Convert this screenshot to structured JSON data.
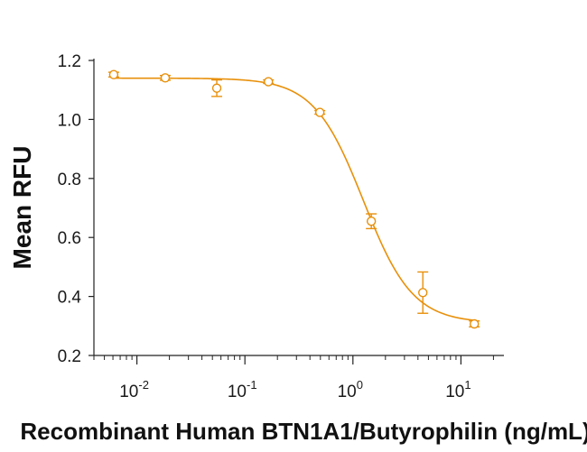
{
  "chart_data": {
    "type": "scatter",
    "title": "",
    "xlabel": "Recombinant Human BTN1A1/Butyrophilin (ng/mL)",
    "ylabel": "Mean RFU",
    "xscale": "log",
    "xlim": [
      0.004,
      25
    ],
    "ylim": [
      0.2,
      1.2
    ],
    "x_ticks": [
      {
        "value": 0.01,
        "base": "10",
        "exp": "-2"
      },
      {
        "value": 0.1,
        "base": "10",
        "exp": "-1"
      },
      {
        "value": 1,
        "base": "10",
        "exp": "0"
      },
      {
        "value": 10,
        "base": "10",
        "exp": "1"
      }
    ],
    "y_ticks": [
      "0.2",
      "0.4",
      "0.6",
      "0.8",
      "1.0",
      "1.2"
    ],
    "grid": false,
    "legend": "none",
    "color": "#e8900a",
    "series": [
      {
        "points": [
          {
            "x": 0.0061,
            "y": 1.152,
            "err": 0.008
          },
          {
            "x": 0.0183,
            "y": 1.141,
            "err": 0.008
          },
          {
            "x": 0.0549,
            "y": 1.106,
            "err": 0.028
          },
          {
            "x": 0.165,
            "y": 1.128,
            "err": 0.006
          },
          {
            "x": 0.494,
            "y": 1.024,
            "err": 0.006
          },
          {
            "x": 1.48,
            "y": 0.655,
            "err": 0.025
          },
          {
            "x": 4.44,
            "y": 0.413,
            "err": 0.07
          },
          {
            "x": 13.3,
            "y": 0.307,
            "err": 0.01
          }
        ],
        "fit": {
          "model": "4PL",
          "top": 1.14,
          "bottom": 0.31,
          "ec50": 1.25,
          "hill": 1.9
        }
      }
    ]
  }
}
